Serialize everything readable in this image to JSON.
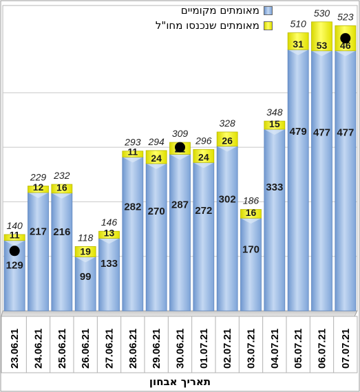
{
  "chart_data": {
    "type": "bar",
    "stacked": true,
    "categories": [
      "23.06.21",
      "24.06.21",
      "25.06.21",
      "26.06.21",
      "27.06.21",
      "28.06.21",
      "29.06.21",
      "30.06.21",
      "01.07.21",
      "02.07.21",
      "03.07.21",
      "04.07.21",
      "05.07.21",
      "06.07.21",
      "07.07.21"
    ],
    "series": [
      {
        "name": "מאומתים מקומיים",
        "values": [
          129,
          217,
          216,
          99,
          133,
          282,
          270,
          287,
          272,
          302,
          170,
          333,
          479,
          477,
          477
        ],
        "color": "#8fb4e3"
      },
      {
        "name": "מאומתים שנכנסו מחו\"ל",
        "values": [
          11,
          12,
          16,
          19,
          13,
          11,
          24,
          22,
          24,
          26,
          16,
          15,
          31,
          53,
          46
        ],
        "color": "#f2f200"
      }
    ],
    "totals": [
      "140",
      "229",
      "232",
      "118",
      "146",
      "293",
      "294",
      "309",
      "296",
      "328",
      "186",
      "348",
      "510",
      "530",
      "523"
    ],
    "markers": [
      {
        "category": "23.06.21",
        "value": 110
      },
      {
        "category": "30.06.21",
        "value": 300
      },
      {
        "category": "07.07.21",
        "value": 500
      }
    ],
    "xlabel": "תאריך אבחון",
    "ylim": [
      0,
      560
    ],
    "grid": true,
    "legend_position": "top-right"
  }
}
